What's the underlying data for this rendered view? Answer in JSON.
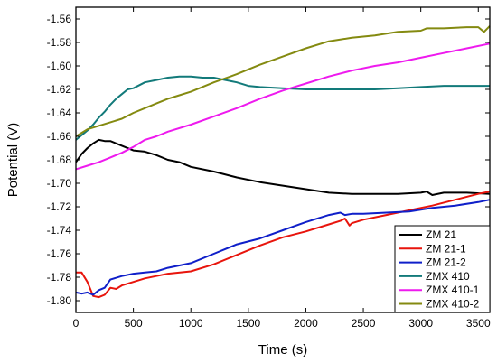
{
  "chart_data": {
    "type": "line",
    "xlabel": "Time (s)",
    "ylabel": "Potential (V)",
    "xlim": [
      0,
      3600
    ],
    "ylim": [
      -1.81,
      -1.55
    ],
    "x_ticks": [
      0,
      500,
      1000,
      1500,
      2000,
      2500,
      3000,
      3500
    ],
    "y_ticks": [
      -1.8,
      -1.78,
      -1.76,
      -1.74,
      -1.72,
      -1.7,
      -1.68,
      -1.66,
      -1.64,
      -1.62,
      -1.6,
      -1.58,
      -1.56
    ],
    "x_tick_labels": [
      "0",
      "500",
      "1000",
      "1500",
      "2000",
      "2500",
      "3000",
      "3500"
    ],
    "y_tick_labels": [
      "-1.80",
      "-1.78",
      "-1.76",
      "-1.74",
      "-1.72",
      "-1.70",
      "-1.68",
      "-1.66",
      "-1.64",
      "-1.62",
      "-1.60",
      "-1.58",
      "-1.56"
    ],
    "grid": false,
    "legend_position": "bottom-right",
    "series": [
      {
        "name": "ZM 21",
        "color": "#000000",
        "x": [
          0,
          50,
          100,
          150,
          200,
          250,
          300,
          350,
          400,
          500,
          600,
          700,
          800,
          900,
          1000,
          1200,
          1400,
          1600,
          1800,
          2000,
          2200,
          2400,
          2600,
          2800,
          3000,
          3050,
          3100,
          3200,
          3400,
          3600
        ],
        "y": [
          -1.682,
          -1.675,
          -1.67,
          -1.666,
          -1.663,
          -1.664,
          -1.664,
          -1.666,
          -1.668,
          -1.672,
          -1.673,
          -1.676,
          -1.68,
          -1.682,
          -1.686,
          -1.69,
          -1.695,
          -1.699,
          -1.702,
          -1.705,
          -1.708,
          -1.709,
          -1.709,
          -1.709,
          -1.708,
          -1.707,
          -1.71,
          -1.708,
          -1.708,
          -1.709
        ]
      },
      {
        "name": "ZM 21-1",
        "color": "#e8140c",
        "x": [
          0,
          50,
          100,
          150,
          200,
          250,
          300,
          350,
          400,
          500,
          600,
          700,
          800,
          1000,
          1200,
          1400,
          1600,
          1800,
          2000,
          2200,
          2300,
          2340,
          2380,
          2400,
          2500,
          2700,
          2900,
          3100,
          3300,
          3500,
          3600
        ],
        "y": [
          -1.776,
          -1.776,
          -1.784,
          -1.796,
          -1.797,
          -1.795,
          -1.789,
          -1.79,
          -1.787,
          -1.784,
          -1.781,
          -1.779,
          -1.777,
          -1.775,
          -1.769,
          -1.761,
          -1.753,
          -1.746,
          -1.741,
          -1.735,
          -1.732,
          -1.73,
          -1.736,
          -1.734,
          -1.731,
          -1.727,
          -1.723,
          -1.719,
          -1.714,
          -1.709,
          -1.707
        ]
      },
      {
        "name": "ZM 21-2",
        "color": "#0f1fc9",
        "x": [
          0,
          50,
          100,
          150,
          200,
          250,
          300,
          400,
          500,
          600,
          700,
          800,
          900,
          1000,
          1200,
          1400,
          1600,
          1800,
          2000,
          2200,
          2300,
          2340,
          2400,
          2500,
          2700,
          2900,
          3100,
          3300,
          3500,
          3600
        ],
        "y": [
          -1.793,
          -1.794,
          -1.793,
          -1.795,
          -1.791,
          -1.789,
          -1.782,
          -1.779,
          -1.777,
          -1.776,
          -1.775,
          -1.772,
          -1.77,
          -1.768,
          -1.76,
          -1.752,
          -1.747,
          -1.74,
          -1.733,
          -1.727,
          -1.725,
          -1.727,
          -1.726,
          -1.726,
          -1.725,
          -1.724,
          -1.721,
          -1.719,
          -1.716,
          -1.714
        ]
      },
      {
        "name": "ZMX 410",
        "color": "#127a7a",
        "x": [
          0,
          50,
          100,
          150,
          200,
          250,
          300,
          350,
          400,
          450,
          500,
          600,
          700,
          800,
          900,
          1000,
          1100,
          1200,
          1300,
          1400,
          1500,
          1600,
          1800,
          2000,
          2200,
          2400,
          2600,
          2800,
          3000,
          3200,
          3400,
          3600
        ],
        "y": [
          -1.663,
          -1.659,
          -1.655,
          -1.65,
          -1.644,
          -1.639,
          -1.633,
          -1.628,
          -1.624,
          -1.62,
          -1.619,
          -1.614,
          -1.612,
          -1.61,
          -1.609,
          -1.609,
          -1.61,
          -1.61,
          -1.612,
          -1.614,
          -1.617,
          -1.618,
          -1.619,
          -1.62,
          -1.62,
          -1.62,
          -1.62,
          -1.619,
          -1.618,
          -1.617,
          -1.617,
          -1.617
        ]
      },
      {
        "name": "ZMX 410-1",
        "color": "#ee1aee",
        "x": [
          0,
          100,
          200,
          300,
          400,
          500,
          600,
          700,
          800,
          1000,
          1200,
          1400,
          1600,
          1800,
          2000,
          2200,
          2400,
          2600,
          2800,
          3000,
          3200,
          3400,
          3600
        ],
        "y": [
          -1.688,
          -1.685,
          -1.682,
          -1.678,
          -1.674,
          -1.669,
          -1.663,
          -1.66,
          -1.656,
          -1.65,
          -1.643,
          -1.636,
          -1.628,
          -1.621,
          -1.615,
          -1.609,
          -1.604,
          -1.6,
          -1.597,
          -1.593,
          -1.589,
          -1.585,
          -1.581
        ]
      },
      {
        "name": "ZMX 410-2",
        "color": "#848a10",
        "x": [
          0,
          100,
          200,
          300,
          400,
          500,
          600,
          700,
          800,
          900,
          1000,
          1200,
          1400,
          1600,
          1800,
          2000,
          2200,
          2400,
          2600,
          2800,
          3000,
          3050,
          3200,
          3400,
          3500,
          3550,
          3600
        ],
        "y": [
          -1.66,
          -1.654,
          -1.651,
          -1.648,
          -1.645,
          -1.64,
          -1.636,
          -1.632,
          -1.628,
          -1.625,
          -1.622,
          -1.614,
          -1.607,
          -1.599,
          -1.592,
          -1.585,
          -1.579,
          -1.576,
          -1.574,
          -1.571,
          -1.57,
          -1.568,
          -1.568,
          -1.567,
          -1.567,
          -1.571,
          -1.566
        ]
      }
    ]
  }
}
